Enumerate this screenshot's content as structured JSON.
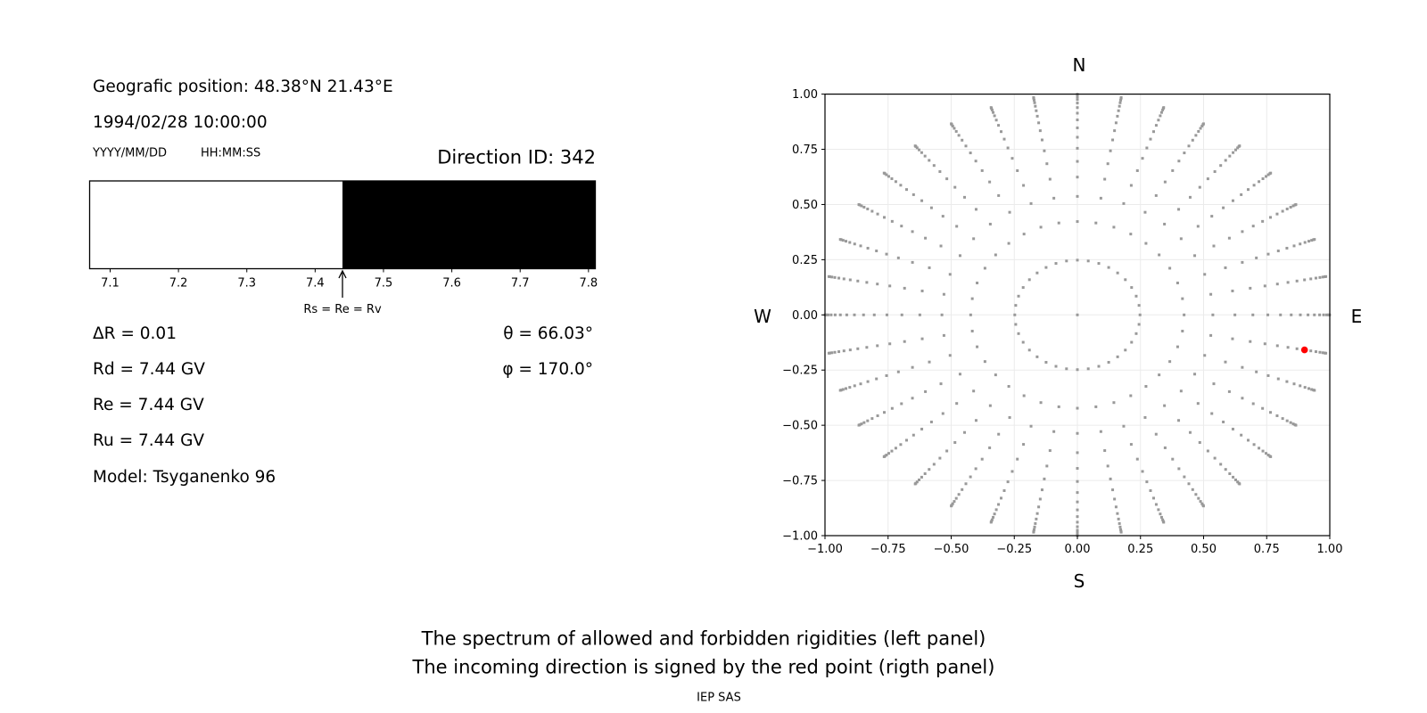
{
  "left_panel": {
    "position": "Geografic position: 48.38°N 21.43°E",
    "datetime": "1994/02/28 10:00:00",
    "date_format": "YYYY/MM/DD",
    "time_format": "HH:MM:SS",
    "direction_id": "Direction ID: 342",
    "delta_r": "ΔR = 0.01",
    "rd": "Rd = 7.44 GV",
    "re": "Re = 7.44 GV",
    "ru": "Ru = 7.44 GV",
    "model": "Model: Tsyganenko 96",
    "theta": "θ = 66.03°",
    "phi": "φ = 170.0°"
  },
  "footer": {
    "line1": "The spectrum of allowed and forbidden rigidities (left panel)",
    "line2": "The incoming direction is signed by the red point (rigth panel)",
    "credit": "IEP SAS"
  },
  "chart_data": [
    {
      "type": "bar",
      "xlim": [
        7.07,
        7.81
      ],
      "xticks": [
        "7.1",
        "7.2",
        "7.3",
        "7.4",
        "7.5",
        "7.6",
        "7.7",
        "7.8"
      ],
      "segments": [
        {
          "from": 7.07,
          "to": 7.44,
          "color": "#ffffff"
        },
        {
          "from": 7.44,
          "to": 7.81,
          "color": "#000000"
        }
      ],
      "annotation": {
        "text": "Rs = Re = Rv",
        "x": 7.44
      }
    },
    {
      "type": "scatter",
      "xlim": [
        -1,
        1
      ],
      "ylim": [
        -1,
        1
      ],
      "grid": true,
      "xticks": [
        "−1.00",
        "−0.75",
        "−0.50",
        "−0.25",
        "0.00",
        "0.25",
        "0.50",
        "0.75",
        "1.00"
      ],
      "yticks": [
        "−1.00",
        "−0.75",
        "−0.50",
        "−0.25",
        "0.00",
        "0.25",
        "0.50",
        "0.75",
        "1.00"
      ],
      "compass": {
        "north": "N",
        "south": "S",
        "west": "W",
        "east": "E"
      },
      "zenith_deg": [
        14.36,
        25.01,
        32.46,
        38.62,
        44.05,
        48.99,
        53.58,
        57.91,
        62.05,
        66.03,
        69.89,
        73.67,
        77.36,
        81.01,
        84.62,
        88.21
      ],
      "azimuth_step_deg": 10,
      "center_point": true,
      "point_color": "#999999",
      "highlight": {
        "theta_deg": 66.03,
        "phi_deg": 170.0,
        "color": "#ff0000"
      }
    }
  ]
}
